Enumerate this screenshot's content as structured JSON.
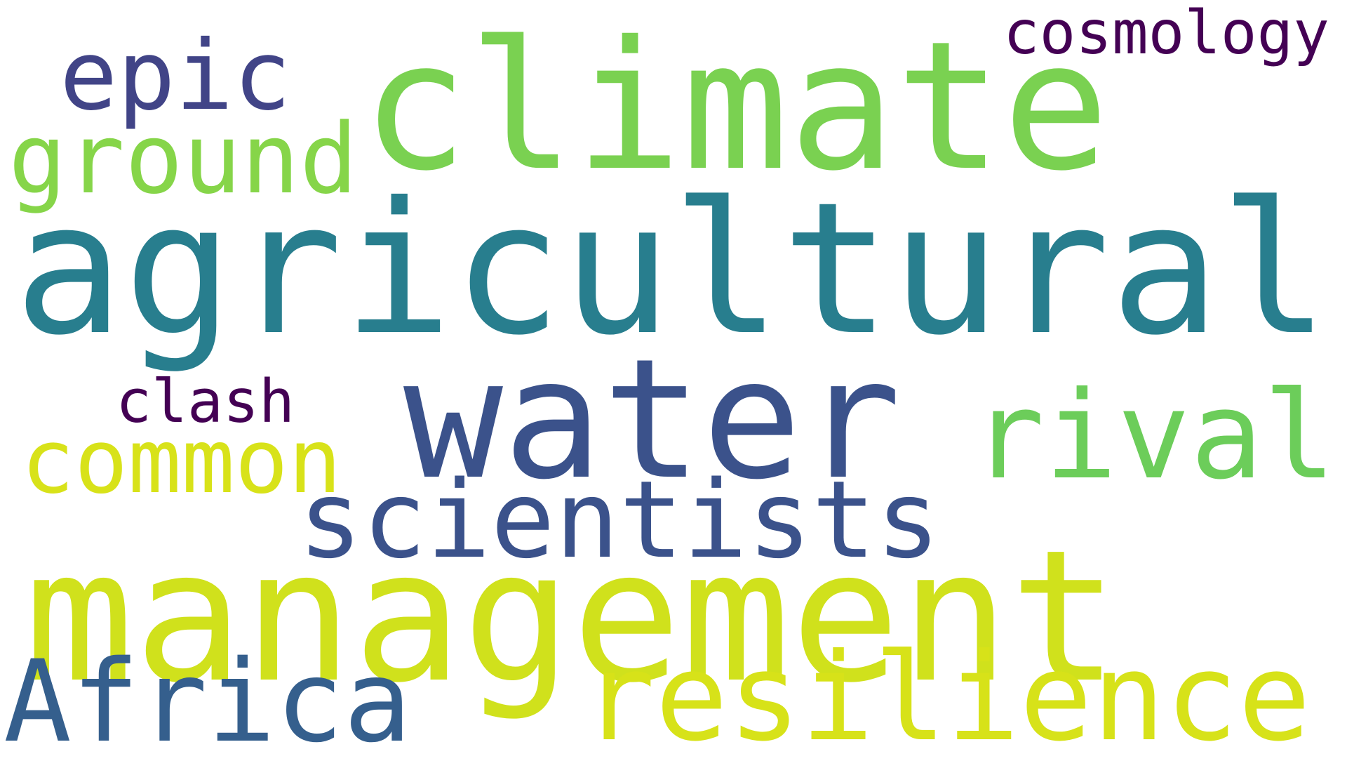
{
  "words": [
    {
      "id": "agricultural",
      "text": "agricultural",
      "color": "#287e8e"
    },
    {
      "id": "management",
      "text": "management",
      "color": "#d0e11c"
    },
    {
      "id": "climate",
      "text": "climate",
      "color": "#7ad151"
    },
    {
      "id": "water",
      "text": "water",
      "color": "#3b528b"
    },
    {
      "id": "Africa",
      "text": "Africa",
      "color": "#355f8d"
    },
    {
      "id": "resilience",
      "text": "resilience",
      "color": "#d7e219"
    },
    {
      "id": "scientists",
      "text": "scientists",
      "color": "#3b528b"
    },
    {
      "id": "rival",
      "text": "rival",
      "color": "#6ccd5a"
    },
    {
      "id": "common",
      "text": "common",
      "color": "#d8e219"
    },
    {
      "id": "ground",
      "text": "ground",
      "color": "#86d549"
    },
    {
      "id": "epic",
      "text": "epic",
      "color": "#414487"
    },
    {
      "id": "clash",
      "text": "clash",
      "color": "#440154"
    },
    {
      "id": "cosmology",
      "text": "cosmology",
      "color": "#440154"
    }
  ]
}
